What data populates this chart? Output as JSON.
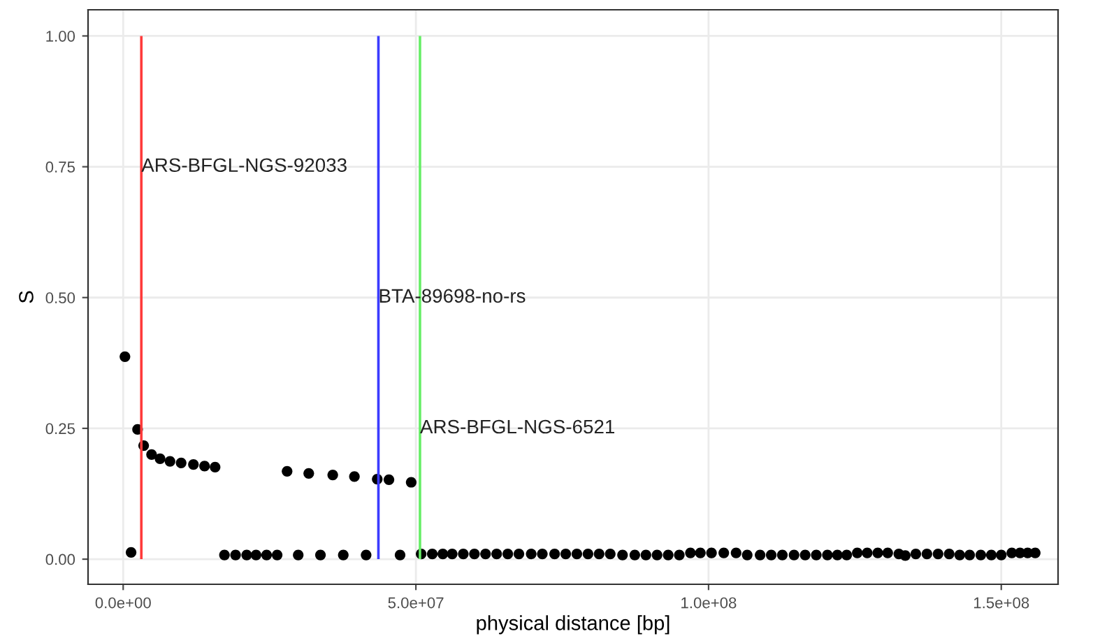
{
  "chart_data": {
    "type": "scatter",
    "xlabel": "physical distance [bp]",
    "ylabel": "S",
    "x": [
      300000,
      1350000,
      2460000,
      3500000,
      4850000,
      6300000,
      8000000,
      9900000,
      12000000,
      13900000,
      15700000,
      17300000,
      19200000,
      21100000,
      22700000,
      24500000,
      26300000,
      28000000,
      29900000,
      31700000,
      33700000,
      35800000,
      37600000,
      39500000,
      41500000,
      43400000,
      45400000,
      47300000,
      49200000,
      50900000,
      52800000,
      54600000,
      56200000,
      58100000,
      60000000,
      61900000,
      63800000,
      65700000,
      67600000,
      69700000,
      71600000,
      73700000,
      75600000,
      77500000,
      79400000,
      81300000,
      83200000,
      85300000,
      87400000,
      89300000,
      91200000,
      93100000,
      95000000,
      96900000,
      98600000,
      100500000,
      102600000,
      104700000,
      106600000,
      108800000,
      110700000,
      112600000,
      114600000,
      116500000,
      118400000,
      120300000,
      122000000,
      123600000,
      125400000,
      127100000,
      128900000,
      130600000,
      132500000,
      133600000,
      135400000,
      137300000,
      139200000,
      141100000,
      142900000,
      144600000,
      146500000,
      148300000,
      150000000,
      151800000,
      153200000,
      154500000,
      155800000
    ],
    "values": [
      0.387,
      0.013,
      0.248,
      0.217,
      0.2,
      0.192,
      0.187,
      0.184,
      0.181,
      0.178,
      0.176,
      0.008,
      0.008,
      0.008,
      0.008,
      0.008,
      0.008,
      0.168,
      0.008,
      0.164,
      0.008,
      0.161,
      0.008,
      0.158,
      0.008,
      0.153,
      0.152,
      0.008,
      0.147,
      0.01,
      0.01,
      0.01,
      0.01,
      0.01,
      0.01,
      0.01,
      0.01,
      0.01,
      0.01,
      0.01,
      0.01,
      0.01,
      0.01,
      0.01,
      0.01,
      0.01,
      0.01,
      0.008,
      0.008,
      0.008,
      0.008,
      0.008,
      0.008,
      0.012,
      0.012,
      0.012,
      0.012,
      0.012,
      0.008,
      0.008,
      0.008,
      0.008,
      0.008,
      0.008,
      0.008,
      0.008,
      0.008,
      0.008,
      0.012,
      0.012,
      0.012,
      0.012,
      0.01,
      0.007,
      0.01,
      0.01,
      0.01,
      0.01,
      0.008,
      0.008,
      0.008,
      0.008,
      0.008,
      0.012,
      0.012,
      0.012,
      0.012
    ],
    "color": "#000000",
    "marker": "circle",
    "grid": true,
    "legend": false,
    "xlim": [
      -6000000,
      159700000
    ],
    "ylim": [
      -0.048,
      1.05
    ],
    "xticks": [
      {
        "value": 0,
        "label": "0.0e+00"
      },
      {
        "value": 50000000,
        "label": "5.0e+07"
      },
      {
        "value": 100000000,
        "label": "1.0e+08"
      },
      {
        "value": 150000000,
        "label": "1.5e+08"
      }
    ],
    "yticks": [
      {
        "value": 0,
        "label": "0.00"
      },
      {
        "value": 0.25,
        "label": "0.25"
      },
      {
        "value": 0.5,
        "label": "0.50"
      },
      {
        "value": 0.75,
        "label": "0.75"
      },
      {
        "value": 1,
        "label": "1.00"
      }
    ],
    "ref_lines": [
      {
        "axis": "x",
        "value": 3100000,
        "color": "#ff3b3b"
      },
      {
        "axis": "x",
        "value": 43600000,
        "color": "#3b3bff"
      },
      {
        "axis": "x",
        "value": 50700000,
        "color": "#66ee66"
      }
    ],
    "annotations": [
      {
        "text": "ARS-BFGL-NGS-92033",
        "x": 3100000,
        "y": 0.75
      },
      {
        "text": "BTA-89698-no-rs",
        "x": 43600000,
        "y": 0.5
      },
      {
        "text": "ARS-BFGL-NGS-6521",
        "x": 50700000,
        "y": 0.25
      }
    ]
  }
}
